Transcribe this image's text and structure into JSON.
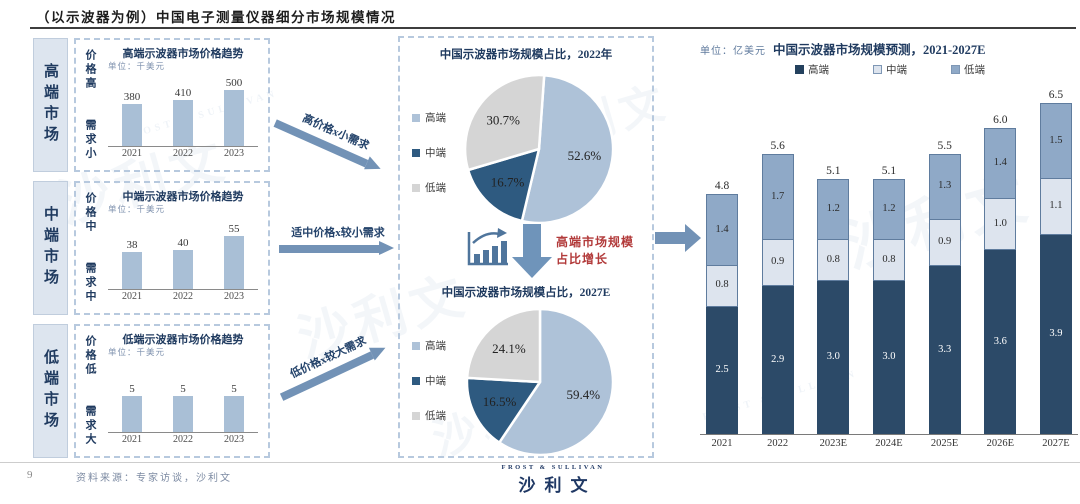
{
  "header": {
    "title": "（以示波器为例）中国电子测量仪器细分市场规模情况"
  },
  "segments": [
    {
      "label": "高端市场",
      "price_trait": "价格高",
      "demand_trait": "需求小",
      "arrow_label": "高价格x小需求"
    },
    {
      "label": "中端市场",
      "price_trait": "价格中",
      "demand_trait": "需求中",
      "arrow_label": "适中价格x较小需求"
    },
    {
      "label": "低端市场",
      "price_trait": "价格低",
      "demand_trait": "需求大",
      "arrow_label": "低价格x较大需求"
    }
  ],
  "pies_panel": {
    "note_line1": "高端市场规模",
    "note_line2": "占比增长"
  },
  "footer": {
    "page_number": "9",
    "source": "资料来源：专家访谈，沙利文",
    "logo_top": "FROST & SULLIVAN",
    "logo_main": "沙利文",
    "watermark": "沙利文"
  },
  "colors": {
    "pie_gao": "#aec2d8",
    "pie_zhong": "#2e5a80",
    "pie_di": "#d5d5d5",
    "stack_gao": "#2c4a68",
    "stack_zhong": "#dde4ee",
    "stack_di": "#8fa9c7",
    "mini_bar": "#a9bfd6",
    "arrow": "#7292b6",
    "note_red": "#b23a3a",
    "navy": "#1f3a5f"
  },
  "chart_data": [
    {
      "type": "bar",
      "title": "高端示波器市场价格趋势",
      "unit": "单位：千美元",
      "categories": [
        "2021",
        "2022",
        "2023"
      ],
      "values": [
        380,
        410,
        500
      ],
      "ylim": [
        0,
        520
      ]
    },
    {
      "type": "bar",
      "title": "中端示波器市场价格趋势",
      "unit": "单位：千美元",
      "categories": [
        "2021",
        "2022",
        "2023"
      ],
      "values": [
        38,
        40,
        55
      ],
      "ylim": [
        0,
        60
      ]
    },
    {
      "type": "bar",
      "title": "低端示波器市场价格趋势",
      "unit": "单位：千美元",
      "categories": [
        "2021",
        "2022",
        "2023"
      ],
      "values": [
        5,
        5,
        5
      ],
      "ylim": [
        0,
        8
      ]
    },
    {
      "type": "pie",
      "title": "中国示波器市场规模占比，2022年",
      "labels": [
        "高端",
        "中端",
        "低端"
      ],
      "values": [
        52.6,
        16.7,
        30.7
      ],
      "legend_position": "left"
    },
    {
      "type": "pie",
      "title": "中国示波器市场规模占比，2027E",
      "labels": [
        "高端",
        "中端",
        "低端"
      ],
      "values": [
        59.4,
        16.5,
        24.1
      ],
      "legend_position": "left"
    },
    {
      "type": "bar",
      "stacked": true,
      "title": "中国示波器市场规模预测，2021-2027E",
      "unit": "单位：亿美元",
      "categories": [
        "2021",
        "2022",
        "2023E",
        "2024E",
        "2025E",
        "2026E",
        "2027E"
      ],
      "series": [
        {
          "name": "高端",
          "values": [
            2.5,
            2.9,
            3.0,
            3.0,
            3.3,
            3.6,
            3.9
          ]
        },
        {
          "name": "中端",
          "values": [
            0.8,
            0.9,
            0.8,
            0.8,
            0.9,
            1.0,
            1.1
          ]
        },
        {
          "name": "低端",
          "values": [
            1.4,
            1.7,
            1.2,
            1.2,
            1.3,
            1.4,
            1.5
          ]
        }
      ],
      "totals": [
        4.8,
        5.6,
        5.1,
        5.1,
        5.5,
        6.0,
        6.5
      ],
      "legend_position": "top",
      "grid": false
    }
  ]
}
